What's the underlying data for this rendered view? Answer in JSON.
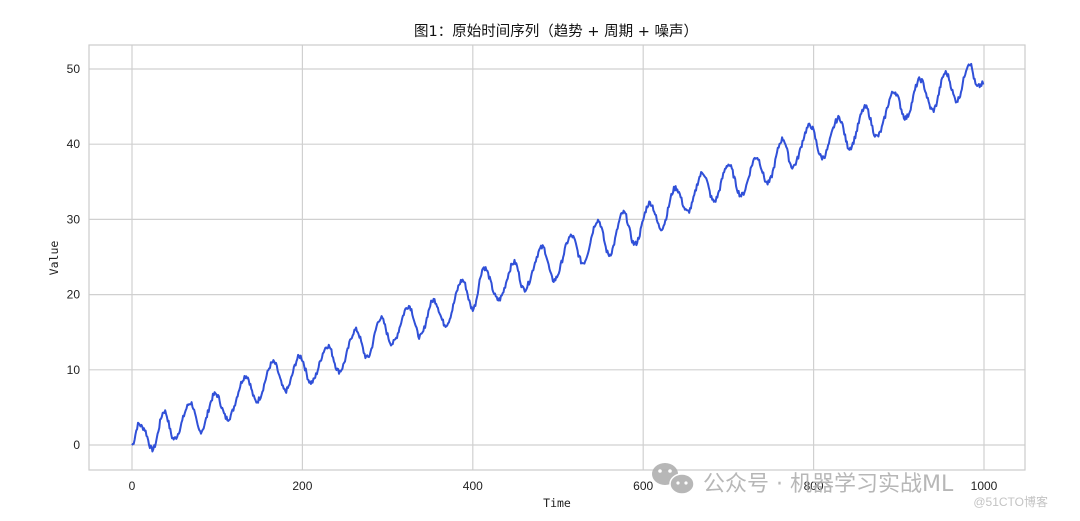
{
  "chart_data": {
    "type": "line",
    "title": "图1：原始时间序列（趋势 + 周期 + 噪声）",
    "xlabel": "Time",
    "ylabel": "Value",
    "xlim": [
      -50,
      1050
    ],
    "ylim": [
      -3.5,
      53.5
    ],
    "xticks": [
      0,
      200,
      400,
      600,
      800,
      1000
    ],
    "yticks": [
      0,
      10,
      20,
      30,
      40,
      50
    ],
    "grid": true,
    "legend": null,
    "line_color": "#3050d8",
    "series": [
      {
        "name": "Value",
        "x": [
          0,
          8,
          13,
          24,
          38,
          49,
          69,
          80,
          98,
          112,
          134,
          146,
          166,
          180,
          197,
          210,
          230,
          243,
          263,
          276,
          292,
          305,
          325,
          338,
          354,
          368,
          388,
          400,
          413,
          430,
          449,
          460,
          482,
          495,
          516,
          529,
          547,
          560,
          577,
          590,
          608,
          621,
          638,
          652,
          670,
          683,
          700,
          715,
          733,
          746,
          764,
          775,
          796,
          810,
          830,
          842,
          861,
          874,
          895,
          908,
          925,
          940,
          955,
          968,
          983,
          992,
          1000
        ],
        "values": [
          0.0,
          2.8,
          2.3,
          -0.6,
          4.5,
          0.8,
          5.6,
          1.8,
          6.8,
          3.5,
          9.2,
          5.8,
          11.0,
          7.2,
          11.8,
          8.3,
          13.2,
          9.8,
          15.3,
          11.6,
          16.9,
          13.5,
          18.5,
          14.4,
          19.3,
          16.0,
          21.9,
          18.1,
          23.6,
          19.3,
          24.3,
          20.7,
          26.3,
          21.9,
          27.8,
          24.2,
          29.9,
          25.3,
          30.9,
          26.7,
          32.2,
          28.8,
          34.2,
          31.0,
          36.2,
          32.4,
          37.3,
          33.2,
          38.3,
          34.8,
          40.7,
          37.0,
          42.5,
          38.2,
          43.5,
          39.5,
          44.9,
          41.0,
          47.0,
          43.5,
          48.6,
          44.5,
          49.5,
          45.8,
          50.8,
          47.6,
          48.1
        ]
      }
    ]
  },
  "watermark": {
    "text": "公众号 · 机器学习实战ML",
    "source": "@51CTO博客"
  }
}
